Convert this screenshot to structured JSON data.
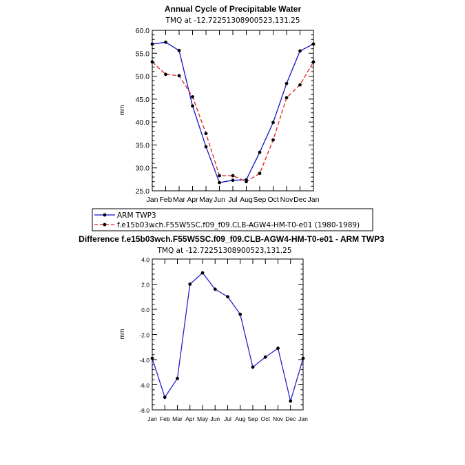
{
  "colors": {
    "series_obs": "#1010cc",
    "series_model": "#e02020",
    "diff_line": "#2a1fcc",
    "marker": "#000000"
  },
  "chart_data": [
    {
      "type": "line",
      "title": "Annual Cycle of Precipitable Water",
      "subtitle": "TMQ at -12.72251308900523,131.25",
      "ylabel": "mm",
      "ylim": [
        25.0,
        60.0
      ],
      "yticks": [
        "25.0",
        "30.0",
        "35.0",
        "40.0",
        "45.0",
        "50.0",
        "55.0",
        "60.0"
      ],
      "ytick_values": [
        25,
        30,
        35,
        40,
        45,
        50,
        55,
        60
      ],
      "categories": [
        "Jan",
        "Feb",
        "Mar",
        "Apr",
        "May",
        "Jun",
        "Jul",
        "Aug",
        "Sep",
        "Oct",
        "Nov",
        "Dec",
        "Jan"
      ],
      "series": [
        {
          "name": "ARM TWP3",
          "style": "solid",
          "values": [
            57.0,
            57.4,
            55.6,
            43.5,
            34.6,
            26.8,
            27.3,
            27.4,
            33.4,
            39.9,
            48.4,
            55.5,
            57.0
          ]
        },
        {
          "name": "f.e15b03wch.F55W5SC.f09_f09.CLB-AGW4-HM-T0-e01 (1980-1989)",
          "style": "dashed",
          "values": [
            53.1,
            50.4,
            50.1,
            45.5,
            37.5,
            28.3,
            28.3,
            27.0,
            28.8,
            36.1,
            45.3,
            48.1,
            53.1
          ]
        }
      ],
      "legend": [
        "ARM TWP3",
        "f.e15b03wch.F55W5SC.f09_f09.CLB-AGW4-HM-T0-e01 (1980-1989)"
      ]
    },
    {
      "type": "line",
      "title": "Difference f.e15b03wch.F55W5SC.f09_f09.CLB-AGW4-HM-T0-e01 - ARM TWP3",
      "subtitle": "TMQ at -12.72251308900523,131.25",
      "ylabel": "mm",
      "ylim": [
        -8.0,
        4.0
      ],
      "yticks": [
        "-8.0",
        "-6.0",
        "-4.0",
        "-2.0",
        "0.0",
        "2.0",
        "4.0"
      ],
      "ytick_values": [
        -8,
        -6,
        -4,
        -2,
        0,
        2,
        4
      ],
      "categories": [
        "Jan",
        "Feb",
        "Mar",
        "Apr",
        "May",
        "Jun",
        "Jul",
        "Aug",
        "Sep",
        "Oct",
        "Nov",
        "Dec",
        "Jan"
      ],
      "series": [
        {
          "name": "Difference",
          "style": "solid",
          "values": [
            -3.9,
            -7.0,
            -5.5,
            2.0,
            2.9,
            1.6,
            1.0,
            -0.4,
            -4.6,
            -3.8,
            -3.1,
            -7.3,
            -3.9
          ]
        }
      ]
    }
  ]
}
